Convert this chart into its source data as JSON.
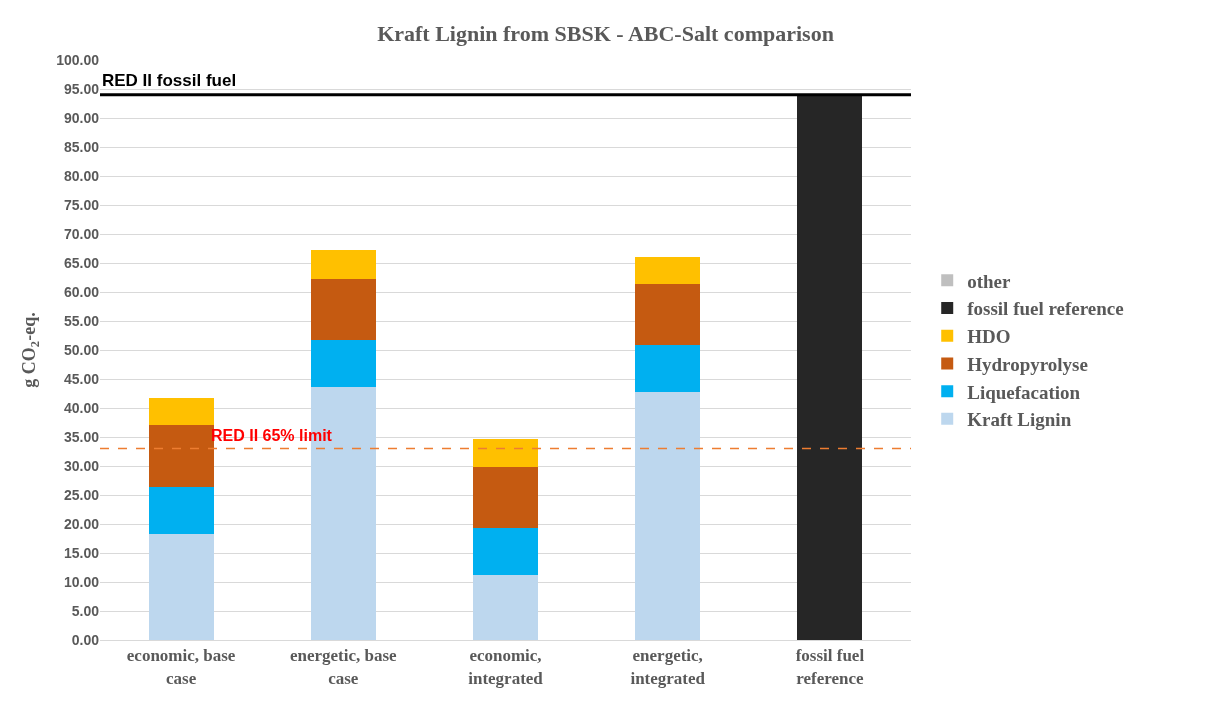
{
  "chart_data": {
    "type": "bar",
    "title": "Kraft Lignin from SBSK - ABC-Salt comparison",
    "ylabel": "g CO$_{2}$-eq.",
    "stacked": true,
    "categories": [
      "economic, base case",
      "energetic, base case",
      "economic, integrated",
      "energetic, integrated",
      "fossil fuel reference"
    ],
    "series": [
      {
        "name": "Kraft Lignin",
        "color": "#bdd7ee",
        "values": [
          18.3,
          43.7,
          11.2,
          42.7,
          null
        ]
      },
      {
        "name": "Liquefacation",
        "color": "#00b0f0",
        "values": [
          8.1,
          8.1,
          8.1,
          8.1,
          null
        ]
      },
      {
        "name": "Hydropyrolyse",
        "color": "#c55a11",
        "values": [
          10.6,
          10.5,
          10.6,
          10.5,
          null
        ]
      },
      {
        "name": "HDO",
        "color": "#ffc000",
        "values": [
          4.8,
          4.9,
          4.8,
          4.8,
          null
        ]
      },
      {
        "name": "fossil fuel reference",
        "color": "#262626",
        "values": [
          null,
          null,
          null,
          null,
          94
        ]
      },
      {
        "name": "other",
        "color": "#bfbfbf",
        "values": [
          null,
          null,
          null,
          null,
          null
        ]
      }
    ],
    "ylim": [
      0,
      100
    ],
    "yticks": [
      {
        "value": 0,
        "label": "0.00"
      },
      {
        "value": 5,
        "label": "5.00"
      },
      {
        "value": 10,
        "label": "10.00"
      },
      {
        "value": 15,
        "label": "15.00"
      },
      {
        "value": 20,
        "label": "20.00"
      },
      {
        "value": 25,
        "label": "25.00"
      },
      {
        "value": 30,
        "label": "30.00"
      },
      {
        "value": 35,
        "label": "35.00"
      },
      {
        "value": 40,
        "label": "40.00"
      },
      {
        "value": 45,
        "label": "45.00"
      },
      {
        "value": 50,
        "label": "50.00"
      },
      {
        "value": 55,
        "label": "55.00"
      },
      {
        "value": 60,
        "label": "60.00"
      },
      {
        "value": 65,
        "label": "65.00"
      },
      {
        "value": 70,
        "label": "70.00"
      },
      {
        "value": 75,
        "label": "75.00"
      },
      {
        "value": 80,
        "label": "80.00"
      },
      {
        "value": 85,
        "label": "85.00"
      },
      {
        "value": 90,
        "label": "90.00"
      },
      {
        "value": 95,
        "label": "95.00"
      },
      {
        "value": 100,
        "label": "100.00"
      }
    ],
    "ref_lines": [
      {
        "axis": "y",
        "value": 94,
        "label": "RED II fossil fuel",
        "color": "#000000",
        "line_style": "solid"
      },
      {
        "axis": "y",
        "value": 33,
        "label": "RED II 65% limit",
        "color": "#ed7d31",
        "line_style": "dashed"
      }
    ],
    "grid": "y",
    "legend": "right"
  }
}
